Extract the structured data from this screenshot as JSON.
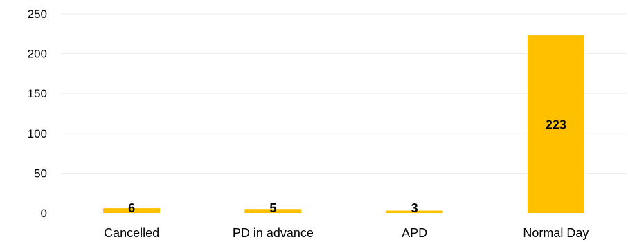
{
  "chart_data": {
    "type": "bar",
    "categories": [
      "Cancelled",
      "PD in advance",
      "APD",
      "Normal Day"
    ],
    "values": [
      6,
      5,
      3,
      223
    ],
    "data_labels": [
      "6",
      "5",
      "3",
      "223"
    ],
    "title": "",
    "xlabel": "",
    "ylabel": "",
    "ylim": [
      0,
      250
    ],
    "yticks": [
      "0",
      "50",
      "100",
      "150",
      "200",
      "250"
    ],
    "grid": true,
    "legend": "none",
    "bar_color": "#FFC000"
  }
}
